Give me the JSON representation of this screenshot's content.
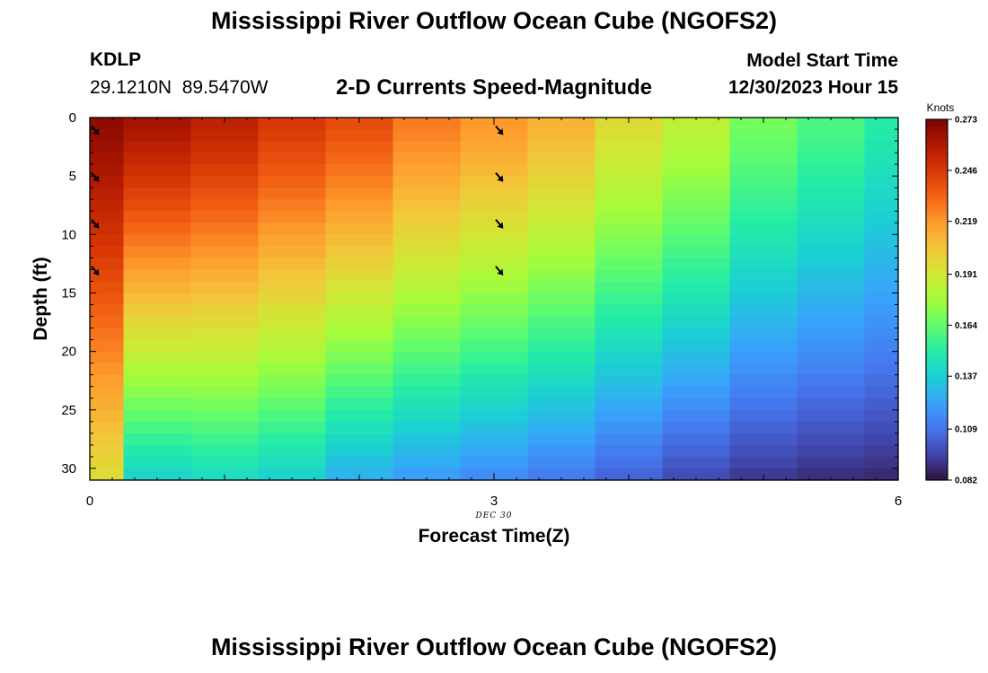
{
  "header": {
    "title": "Mississippi River Outflow Ocean Cube (NGOFS2)",
    "station": "KDLP",
    "coords": "29.1210N  89.5470W",
    "subtitle": "2-D Currents Speed-Magnitude",
    "model_start_label": "Model Start Time",
    "model_start_value": "12/30/2023 Hour 15"
  },
  "footer": {
    "title": "Mississippi River Outflow Ocean Cube (NGOFS2)"
  },
  "chart_data": {
    "type": "heatmap",
    "title": "2-D Currents Speed-Magnitude",
    "xlabel": "Forecast Time(Z)",
    "ylabel": "Depth (ft)",
    "x_ticks": [
      "0",
      "3",
      "6"
    ],
    "x_date_label": "DEC 30",
    "y_ticks": [
      "0",
      "5",
      "10",
      "15",
      "20",
      "25",
      "30"
    ],
    "xlim": [
      0,
      6
    ],
    "ylim": [
      31,
      0
    ],
    "colorbar": {
      "unit": "Knots",
      "ticks": [
        "0.273",
        "0.246",
        "0.219",
        "0.191",
        "0.164",
        "0.137",
        "0.109",
        "0.082"
      ],
      "range": [
        0.082,
        0.273
      ],
      "colors": [
        "#30123b",
        "#4145ab",
        "#4675ed",
        "#39a2fc",
        "#1bcfd4",
        "#24eca6",
        "#61fc6c",
        "#a4fc3b",
        "#d1e834",
        "#f3c63a",
        "#fe9b2d",
        "#f36315",
        "#d93806",
        "#b11901",
        "#7a0402"
      ]
    },
    "columns": [
      {
        "t": 0.0,
        "surface": 0.268,
        "bottom": 0.196
      },
      {
        "t": 0.5,
        "surface": 0.262,
        "bottom": 0.14
      },
      {
        "t": 1.0,
        "surface": 0.255,
        "bottom": 0.143
      },
      {
        "t": 1.5,
        "surface": 0.246,
        "bottom": 0.139
      },
      {
        "t": 2.0,
        "surface": 0.239,
        "bottom": 0.128
      },
      {
        "t": 2.5,
        "surface": 0.226,
        "bottom": 0.122
      },
      {
        "t": 3.0,
        "surface": 0.219,
        "bottom": 0.117
      },
      {
        "t": 3.5,
        "surface": 0.211,
        "bottom": 0.112
      },
      {
        "t": 4.0,
        "surface": 0.196,
        "bottom": 0.105
      },
      {
        "t": 4.5,
        "surface": 0.185,
        "bottom": 0.098
      },
      {
        "t": 5.0,
        "surface": 0.168,
        "bottom": 0.093
      },
      {
        "t": 5.5,
        "surface": 0.159,
        "bottom": 0.09
      },
      {
        "t": 6.0,
        "surface": 0.15,
        "bottom": 0.089
      }
    ],
    "arrows": [
      {
        "t": 0,
        "depth": 0.5
      },
      {
        "t": 0,
        "depth": 4.5
      },
      {
        "t": 0,
        "depth": 8.5
      },
      {
        "t": 0,
        "depth": 12.5
      },
      {
        "t": 3,
        "depth": 0.5
      },
      {
        "t": 3,
        "depth": 4.5
      },
      {
        "t": 3,
        "depth": 8.5
      },
      {
        "t": 3,
        "depth": 12.5
      }
    ]
  }
}
